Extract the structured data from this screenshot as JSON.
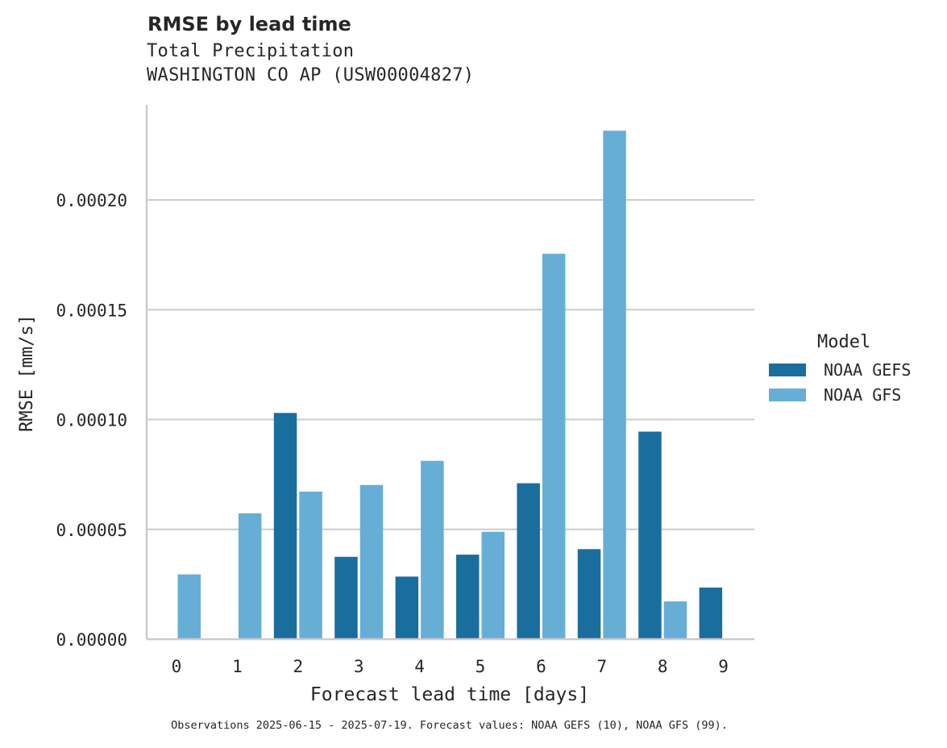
{
  "header": {
    "title": "RMSE by lead time",
    "subtitle_1": "Total Precipitation",
    "subtitle_2": "WASHINGTON CO AP (USW00004827)"
  },
  "legend": {
    "title": "Model",
    "items": [
      {
        "label": "NOAA GEFS",
        "color": "#1a6e9d"
      },
      {
        "label": "NOAA GFS",
        "color": "#67aed7"
      }
    ]
  },
  "footnote": "Observations 2025-06-15 - 2025-07-19. Forecast values: NOAA GEFS (10), NOAA GFS (99).",
  "chart_data": {
    "type": "bar",
    "title": "RMSE by lead time",
    "subtitle": "Total Precipitation / WASHINGTON CO AP (USW00004827)",
    "xlabel": "Forecast lead time [days]",
    "ylabel": "RMSE [mm/s]",
    "categories": [
      "0",
      "1",
      "2",
      "3",
      "4",
      "5",
      "6",
      "7",
      "8",
      "9"
    ],
    "series": [
      {
        "name": "NOAA GEFS",
        "color": "#1a6e9d",
        "values": [
          0,
          0,
          0.000103,
          3.75e-05,
          2.85e-05,
          3.85e-05,
          7.1e-05,
          4.1e-05,
          9.45e-05,
          2.35e-05
        ]
      },
      {
        "name": "NOAA GFS",
        "color": "#67aed7",
        "values": [
          2.95e-05,
          5.73e-05,
          6.72e-05,
          7.02e-05,
          8.12e-05,
          4.89e-05,
          0.0001755,
          0.0002315,
          1.72e-05,
          0
        ]
      }
    ],
    "yticks": [
      "0.00000",
      "0.00005",
      "0.00010",
      "0.00015",
      "0.00020"
    ],
    "ylim": [
      0,
      0.000243
    ],
    "grid": "horizontal",
    "legend_position": "right",
    "legend_title": "Model"
  }
}
